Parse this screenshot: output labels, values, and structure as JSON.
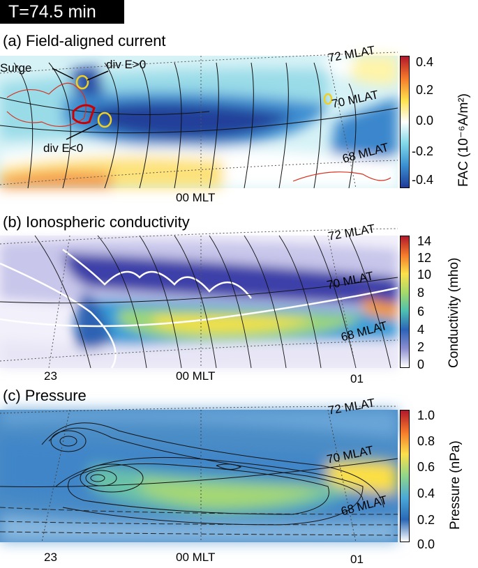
{
  "time_label": "T=74.5 min",
  "panels": {
    "a": {
      "title": "(a) Field-aligned current",
      "annotations": {
        "surge": "Surge",
        "div_pos": "div E>0",
        "div_neg": "div E<0"
      },
      "mlat_labels": [
        "72 MLAT",
        "70 MLAT",
        "68 MLAT"
      ],
      "mlt_labels": [
        "00 MLT"
      ],
      "colorbar": {
        "title": "FAC (10⁻⁶A/m²)",
        "ticks": [
          "0.4",
          "0.2",
          "0.0",
          "-0.2",
          "-0.4"
        ],
        "colors": [
          "#b2182b",
          "#f47a2b",
          "#fde14b",
          "#ffffff",
          "#7fd8e8",
          "#3a8fd0",
          "#1f3b98"
        ]
      }
    },
    "b": {
      "title": "(b) Ionospheric conductivity",
      "mlat_labels": [
        "72 MLAT",
        "70 MLAT",
        "68 MLAT"
      ],
      "mlt_labels": [
        "23",
        "00 MLT",
        "01"
      ],
      "colorbar": {
        "title": "Conductivity (mho)",
        "ticks": [
          "14",
          "12",
          "10",
          "8",
          "6",
          "4",
          "2",
          "0"
        ],
        "colors": [
          "#b2182b",
          "#f47a2b",
          "#fde14b",
          "#a6d96a",
          "#4dbfb0",
          "#2c63b8",
          "#8d8fd0",
          "#ffffff"
        ]
      }
    },
    "c": {
      "title": "(c) Pressure",
      "mlat_labels": [
        "72 MLAT",
        "70 MLAT",
        "68 MLAT"
      ],
      "mlt_labels": [
        "23",
        "00 MLT",
        "01"
      ],
      "colorbar": {
        "title": "Pressure (nPa)",
        "ticks": [
          "1.0",
          "0.8",
          "0.6",
          "0.4",
          "0.2",
          "0.0"
        ],
        "colors": [
          "#b2182b",
          "#f47a2b",
          "#fde14b",
          "#8fd68a",
          "#4aa8d8",
          "#2a68b5",
          "#ffffff"
        ]
      }
    }
  }
}
